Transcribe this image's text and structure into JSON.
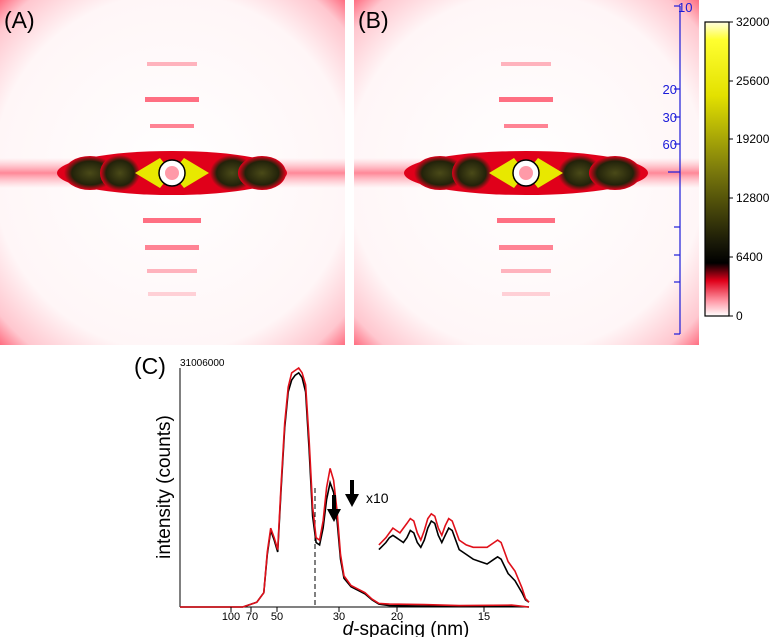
{
  "panels": {
    "a_label": "(A)",
    "b_label": "(B)",
    "c_label": "(C)"
  },
  "colorbar": {
    "ticks": [
      "32000",
      "25600",
      "19200",
      "12800",
      "6400",
      "0"
    ],
    "colors": [
      "#fffde0",
      "#ffff30",
      "#e3e100",
      "#7d7c0c",
      "#1a1a08",
      "#000000",
      "#e0001a",
      "#ff9aa8",
      "#ffffff"
    ]
  },
  "d_scale": {
    "ticks": [
      "10",
      "20",
      "30",
      "60"
    ],
    "color": "#1b1bd9"
  },
  "chart_data": {
    "type": "line",
    "ymax_label": "31006000",
    "ylabel": "intensity (counts)",
    "xlabel_italic": "d",
    "xlabel_rest": "-spacing (nm)",
    "x_tick_labels": [
      "100",
      "70",
      "50",
      "30",
      "20",
      "15"
    ],
    "annotation": "x10",
    "series": [
      {
        "color": "#000000",
        "points": [
          [
            0,
            0.0
          ],
          [
            18,
            0.0
          ],
          [
            20,
            0.01
          ],
          [
            22,
            0.02
          ],
          [
            24,
            0.06
          ],
          [
            25,
            0.22
          ],
          [
            26,
            0.32
          ],
          [
            27,
            0.28
          ],
          [
            28,
            0.23
          ],
          [
            29,
            0.5
          ],
          [
            30,
            0.75
          ],
          [
            31,
            0.9
          ],
          [
            32,
            0.95
          ],
          [
            33,
            0.97
          ],
          [
            34,
            0.98
          ],
          [
            35,
            0.96
          ],
          [
            36,
            0.9
          ],
          [
            37,
            0.66
          ],
          [
            38,
            0.38
          ],
          [
            39,
            0.27
          ],
          [
            40,
            0.26
          ],
          [
            41,
            0.33
          ],
          [
            42,
            0.45
          ],
          [
            43,
            0.52
          ],
          [
            44,
            0.48
          ],
          [
            45,
            0.36
          ],
          [
            46,
            0.2
          ],
          [
            47,
            0.12
          ],
          [
            49,
            0.085
          ],
          [
            51,
            0.07
          ],
          [
            53,
            0.055
          ],
          [
            55,
            0.03
          ],
          [
            57,
            0.012
          ],
          [
            60,
            0.006
          ],
          [
            70,
            0.004
          ],
          [
            80,
            0.002
          ],
          [
            95,
            0.004
          ],
          [
            100,
            0.0
          ]
        ]
      },
      {
        "color": "#e0101a",
        "points": [
          [
            0,
            0.0
          ],
          [
            18,
            0.0
          ],
          [
            20,
            0.01
          ],
          [
            22,
            0.02
          ],
          [
            24,
            0.06
          ],
          [
            25,
            0.23
          ],
          [
            26,
            0.33
          ],
          [
            27,
            0.29
          ],
          [
            28,
            0.24
          ],
          [
            29,
            0.52
          ],
          [
            30,
            0.77
          ],
          [
            31,
            0.92
          ],
          [
            32,
            0.98
          ],
          [
            33,
            0.99
          ],
          [
            34,
            1.0
          ],
          [
            35,
            0.98
          ],
          [
            36,
            0.93
          ],
          [
            37,
            0.7
          ],
          [
            38,
            0.42
          ],
          [
            39,
            0.29
          ],
          [
            40,
            0.28
          ],
          [
            41,
            0.36
          ],
          [
            42,
            0.5
          ],
          [
            43,
            0.58
          ],
          [
            44,
            0.53
          ],
          [
            45,
            0.4
          ],
          [
            46,
            0.22
          ],
          [
            47,
            0.13
          ],
          [
            49,
            0.09
          ],
          [
            51,
            0.075
          ],
          [
            53,
            0.06
          ],
          [
            55,
            0.033
          ],
          [
            57,
            0.015
          ],
          [
            60,
            0.012
          ],
          [
            70,
            0.01
          ],
          [
            80,
            0.006
          ],
          [
            95,
            0.008
          ],
          [
            100,
            0.0
          ]
        ]
      },
      {
        "name_inset": "x10",
        "color": "#000000",
        "points": [
          [
            57,
            0.24
          ],
          [
            59,
            0.27
          ],
          [
            60,
            0.29
          ],
          [
            61,
            0.3
          ],
          [
            62,
            0.29
          ],
          [
            63,
            0.28
          ],
          [
            64,
            0.27
          ],
          [
            65,
            0.29
          ],
          [
            66,
            0.32
          ],
          [
            67,
            0.31
          ],
          [
            68,
            0.27
          ],
          [
            69,
            0.25
          ],
          [
            70,
            0.28
          ],
          [
            71,
            0.33
          ],
          [
            72,
            0.36
          ],
          [
            73,
            0.35
          ],
          [
            74,
            0.3
          ],
          [
            75,
            0.27
          ],
          [
            76,
            0.3
          ],
          [
            77,
            0.33
          ],
          [
            78,
            0.32
          ],
          [
            79,
            0.28
          ],
          [
            80,
            0.24
          ],
          [
            82,
            0.22
          ],
          [
            84,
            0.2
          ],
          [
            86,
            0.19
          ],
          [
            88,
            0.18
          ],
          [
            90,
            0.2
          ],
          [
            91,
            0.21
          ],
          [
            92,
            0.2
          ],
          [
            93,
            0.17
          ],
          [
            94,
            0.14
          ],
          [
            96,
            0.11
          ],
          [
            98,
            0.06
          ],
          [
            99,
            0.03
          ],
          [
            100,
            0.02
          ]
        ]
      },
      {
        "name_inset": "x10",
        "color": "#e0101a",
        "points": [
          [
            57,
            0.26
          ],
          [
            59,
            0.29
          ],
          [
            60,
            0.31
          ],
          [
            61,
            0.33
          ],
          [
            62,
            0.32
          ],
          [
            63,
            0.31
          ],
          [
            64,
            0.33
          ],
          [
            65,
            0.35
          ],
          [
            66,
            0.37
          ],
          [
            67,
            0.36
          ],
          [
            68,
            0.31
          ],
          [
            69,
            0.28
          ],
          [
            70,
            0.32
          ],
          [
            71,
            0.37
          ],
          [
            72,
            0.39
          ],
          [
            73,
            0.38
          ],
          [
            74,
            0.33
          ],
          [
            75,
            0.3
          ],
          [
            76,
            0.34
          ],
          [
            77,
            0.37
          ],
          [
            78,
            0.36
          ],
          [
            79,
            0.32
          ],
          [
            80,
            0.28
          ],
          [
            82,
            0.26
          ],
          [
            84,
            0.25
          ],
          [
            86,
            0.25
          ],
          [
            88,
            0.25
          ],
          [
            90,
            0.27
          ],
          [
            91,
            0.28
          ],
          [
            92,
            0.27
          ],
          [
            93,
            0.23
          ],
          [
            94,
            0.19
          ],
          [
            96,
            0.15
          ],
          [
            98,
            0.08
          ],
          [
            99,
            0.035
          ],
          [
            100,
            0.02
          ]
        ]
      }
    ]
  }
}
